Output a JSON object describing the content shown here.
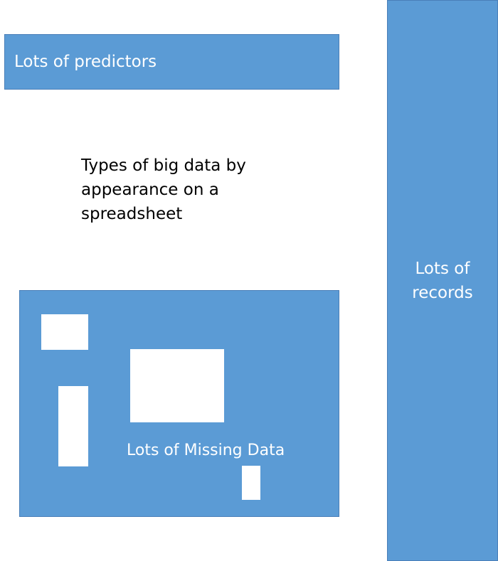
{
  "colors": {
    "block_fill": "#5b9bd5",
    "block_border": "#4a7fb8",
    "hole_fill": "#ffffff",
    "caption_text": "#000000"
  },
  "blocks": {
    "predictors": {
      "label": "Lots of predictors"
    },
    "records": {
      "label_line1": "Lots of",
      "label_line2": "records"
    },
    "missing": {
      "label": "Lots of Missing Data"
    }
  },
  "caption": {
    "line1": "Types of big data by",
    "line2": "appearance on a",
    "line3": "spreadsheet"
  }
}
